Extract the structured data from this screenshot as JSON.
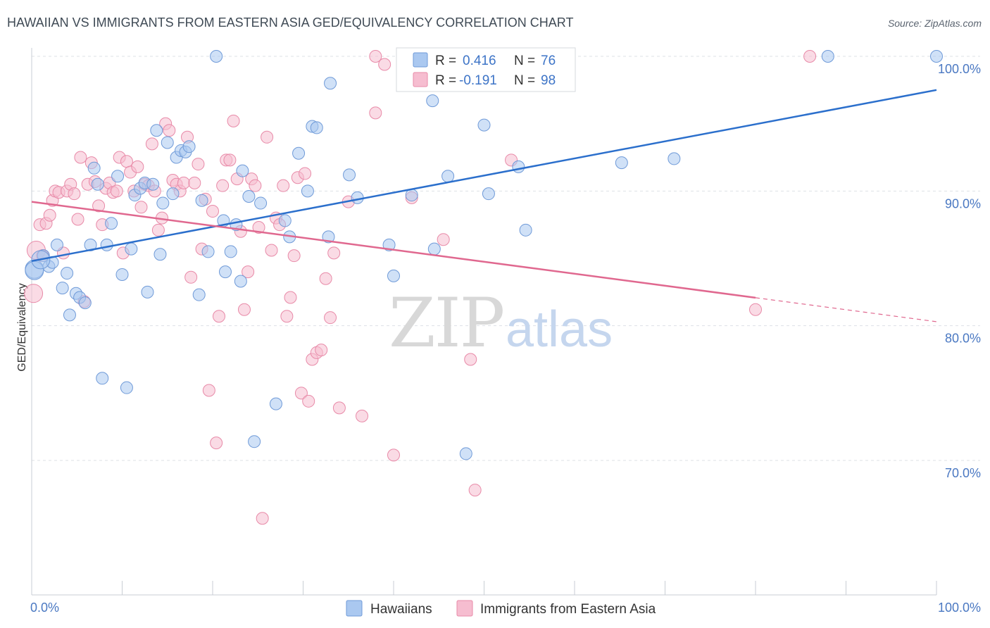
{
  "header": {
    "title": "HAWAIIAN VS IMMIGRANTS FROM EASTERN ASIA GED/EQUIVALENCY CORRELATION CHART",
    "source": "Source: ZipAtlas.com"
  },
  "watermark": {
    "part1": "ZIP",
    "part2": "atlas"
  },
  "colors": {
    "blue_fill": "#aac8f0",
    "blue_stroke": "#6f9ad8",
    "blue_line": "#2b6fcc",
    "pink_fill": "#f6bdd0",
    "pink_stroke": "#e88aa8",
    "pink_line": "#e0688f",
    "grid": "#dde1e6",
    "tick_text": "#4a78c2"
  },
  "legend": {
    "rows": [
      {
        "r_label": "R = ",
        "r_value": "0.416",
        "n_label": "N = ",
        "n_value": "76"
      },
      {
        "r_label": "R = ",
        "r_value": "-0.191",
        "n_label": "N = ",
        "n_value": "98"
      }
    ]
  },
  "chart_data": {
    "type": "scatter",
    "title": "HAWAIIAN VS IMMIGRANTS FROM EASTERN ASIA GED/EQUIVALENCY CORRELATION CHART",
    "xlabel": "",
    "ylabel": "GED/Equivalency",
    "xlim": [
      0,
      100
    ],
    "ylim": [
      60.5,
      102.5
    ],
    "x_tick_labels": [
      "0.0%",
      "100.0%"
    ],
    "y_ticks": [
      {
        "value": 70,
        "label": "70.0%"
      },
      {
        "value": 80,
        "label": "80.0%"
      },
      {
        "value": 90,
        "label": "90.0%"
      },
      {
        "value": 100,
        "label": "100.0%"
      }
    ],
    "grid": true,
    "legend_position": "top-center",
    "series": [
      {
        "name": "Hawaiians",
        "r": 0.416,
        "n": 76,
        "trend": {
          "x": [
            0,
            100
          ],
          "y": [
            84.8,
            97.5
          ],
          "dashed_from": null
        },
        "points": [
          [
            0.3,
            84.2
          ],
          [
            1.3,
            85.2
          ],
          [
            1.9,
            84.4
          ],
          [
            2.3,
            84.7
          ],
          [
            2.8,
            86.0
          ],
          [
            3.4,
            82.8
          ],
          [
            3.9,
            83.9
          ],
          [
            4.2,
            80.8
          ],
          [
            4.9,
            82.4
          ],
          [
            5.3,
            82.1
          ],
          [
            5.9,
            81.7
          ],
          [
            6.5,
            86.0
          ],
          [
            6.9,
            91.7
          ],
          [
            7.3,
            90.5
          ],
          [
            7.8,
            76.1
          ],
          [
            8.3,
            86.0
          ],
          [
            8.8,
            87.6
          ],
          [
            9.5,
            91.1
          ],
          [
            10.0,
            83.8
          ],
          [
            10.5,
            75.4
          ],
          [
            11.0,
            85.7
          ],
          [
            11.4,
            89.7
          ],
          [
            12.0,
            90.2
          ],
          [
            12.5,
            90.6
          ],
          [
            12.8,
            82.5
          ],
          [
            13.4,
            90.5
          ],
          [
            13.8,
            94.5
          ],
          [
            14.2,
            85.3
          ],
          [
            14.5,
            89.1
          ],
          [
            15.0,
            93.6
          ],
          [
            15.6,
            89.8
          ],
          [
            16.0,
            92.5
          ],
          [
            16.5,
            93.0
          ],
          [
            17.0,
            92.9
          ],
          [
            17.4,
            93.3
          ],
          [
            18.5,
            82.3
          ],
          [
            18.8,
            89.3
          ],
          [
            19.5,
            85.5
          ],
          [
            20.4,
            100.0
          ],
          [
            21.2,
            87.8
          ],
          [
            21.4,
            84.0
          ],
          [
            22.0,
            85.5
          ],
          [
            22.6,
            87.5
          ],
          [
            23.1,
            83.3
          ],
          [
            23.3,
            91.5
          ],
          [
            24.0,
            89.6
          ],
          [
            24.6,
            71.4
          ],
          [
            25.3,
            89.1
          ],
          [
            27.0,
            74.2
          ],
          [
            28.0,
            87.8
          ],
          [
            28.5,
            86.6
          ],
          [
            29.5,
            92.8
          ],
          [
            30.5,
            90.0
          ],
          [
            31.0,
            94.8
          ],
          [
            31.5,
            94.7
          ],
          [
            32.8,
            86.6
          ],
          [
            33.0,
            98.0
          ],
          [
            35.1,
            91.2
          ],
          [
            36.0,
            89.5
          ],
          [
            39.5,
            86.0
          ],
          [
            40.0,
            83.7
          ],
          [
            42.0,
            89.7
          ],
          [
            44.3,
            96.7
          ],
          [
            44.5,
            85.7
          ],
          [
            46.0,
            91.1
          ],
          [
            48.0,
            70.5
          ],
          [
            50.0,
            94.9
          ],
          [
            50.5,
            89.8
          ],
          [
            53.8,
            91.8
          ],
          [
            54.6,
            87.1
          ],
          [
            65.2,
            92.1
          ],
          [
            71.0,
            92.4
          ],
          [
            88.0,
            100.0
          ],
          [
            100.0,
            100.0
          ],
          [
            0.3,
            84.1
          ],
          [
            1.0,
            84.9
          ]
        ]
      },
      {
        "name": "Immigrants from Eastern Asia",
        "r": -0.191,
        "n": 98,
        "trend": {
          "x": [
            0,
            100
          ],
          "y": [
            89.2,
            80.3
          ],
          "dashed_from": 80
        },
        "points": [
          [
            0.2,
            82.4
          ],
          [
            0.5,
            85.6
          ],
          [
            0.9,
            87.5
          ],
          [
            1.2,
            85.2
          ],
          [
            1.6,
            87.6
          ],
          [
            2.0,
            88.2
          ],
          [
            2.3,
            89.3
          ],
          [
            2.6,
            90.0
          ],
          [
            3.0,
            89.9
          ],
          [
            3.5,
            85.4
          ],
          [
            3.9,
            90.0
          ],
          [
            4.3,
            90.5
          ],
          [
            4.7,
            89.8
          ],
          [
            5.1,
            87.9
          ],
          [
            5.4,
            92.5
          ],
          [
            5.8,
            81.8
          ],
          [
            6.2,
            90.5
          ],
          [
            6.6,
            92.1
          ],
          [
            7.0,
            90.7
          ],
          [
            7.4,
            88.9
          ],
          [
            7.8,
            87.5
          ],
          [
            8.2,
            90.2
          ],
          [
            8.6,
            90.6
          ],
          [
            9.0,
            89.9
          ],
          [
            9.4,
            90.0
          ],
          [
            9.7,
            92.5
          ],
          [
            10.1,
            85.4
          ],
          [
            10.5,
            92.2
          ],
          [
            10.9,
            91.4
          ],
          [
            11.3,
            90.0
          ],
          [
            11.7,
            91.8
          ],
          [
            12.1,
            88.8
          ],
          [
            12.5,
            90.5
          ],
          [
            12.9,
            90.4
          ],
          [
            13.3,
            93.5
          ],
          [
            13.6,
            90.0
          ],
          [
            14.0,
            87.1
          ],
          [
            14.4,
            88.0
          ],
          [
            14.8,
            95.0
          ],
          [
            15.2,
            94.5
          ],
          [
            15.6,
            90.8
          ],
          [
            16.0,
            90.5
          ],
          [
            16.4,
            90.0
          ],
          [
            16.8,
            90.6
          ],
          [
            17.2,
            94.0
          ],
          [
            17.6,
            83.6
          ],
          [
            18.0,
            90.6
          ],
          [
            18.4,
            92.0
          ],
          [
            18.8,
            85.7
          ],
          [
            19.2,
            89.4
          ],
          [
            19.6,
            75.2
          ],
          [
            20.0,
            88.5
          ],
          [
            20.4,
            71.3
          ],
          [
            20.7,
            80.7
          ],
          [
            21.1,
            90.4
          ],
          [
            21.5,
            92.3
          ],
          [
            21.9,
            92.3
          ],
          [
            22.3,
            95.2
          ],
          [
            22.7,
            90.9
          ],
          [
            23.1,
            87.0
          ],
          [
            23.5,
            81.2
          ],
          [
            23.9,
            84.0
          ],
          [
            24.3,
            90.9
          ],
          [
            24.7,
            90.4
          ],
          [
            25.1,
            87.3
          ],
          [
            25.5,
            65.7
          ],
          [
            26.0,
            94.0
          ],
          [
            26.5,
            85.6
          ],
          [
            27.0,
            88.0
          ],
          [
            27.4,
            87.5
          ],
          [
            27.8,
            90.4
          ],
          [
            28.2,
            80.7
          ],
          [
            28.6,
            82.1
          ],
          [
            29.0,
            85.2
          ],
          [
            29.4,
            91.0
          ],
          [
            29.8,
            75.0
          ],
          [
            30.2,
            91.3
          ],
          [
            30.6,
            74.4
          ],
          [
            31.0,
            77.5
          ],
          [
            31.5,
            78.0
          ],
          [
            32.0,
            78.2
          ],
          [
            32.5,
            83.5
          ],
          [
            33.0,
            80.6
          ],
          [
            33.4,
            85.4
          ],
          [
            34.0,
            73.9
          ],
          [
            35.0,
            89.2
          ],
          [
            36.5,
            73.3
          ],
          [
            38.0,
            95.8
          ],
          [
            39.0,
            99.4
          ],
          [
            40.0,
            70.4
          ],
          [
            42.0,
            89.5
          ],
          [
            45.5,
            86.4
          ],
          [
            48.5,
            77.5
          ],
          [
            49.0,
            67.8
          ],
          [
            53.0,
            92.3
          ],
          [
            80.0,
            81.2
          ],
          [
            86.0,
            100.0
          ],
          [
            38.0,
            100.0
          ]
        ]
      }
    ]
  }
}
